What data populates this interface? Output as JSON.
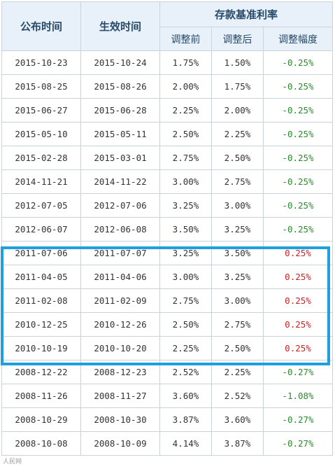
{
  "headers": {
    "announce_date": "公布时间",
    "effective_date": "生效时间",
    "rate_group": "存款基准利率",
    "before": "调整前",
    "after": "调整后",
    "change": "调整幅度"
  },
  "rows": [
    {
      "announce": "2015-10-23",
      "effective": "2015-10-24",
      "before": "1.75%",
      "after": "1.50%",
      "change": "-0.25%"
    },
    {
      "announce": "2015-08-25",
      "effective": "2015-08-26",
      "before": "2.00%",
      "after": "1.75%",
      "change": "-0.25%"
    },
    {
      "announce": "2015-06-27",
      "effective": "2015-06-28",
      "before": "2.25%",
      "after": "2.00%",
      "change": "-0.25%"
    },
    {
      "announce": "2015-05-10",
      "effective": "2015-05-11",
      "before": "2.50%",
      "after": "2.25%",
      "change": "-0.25%"
    },
    {
      "announce": "2015-02-28",
      "effective": "2015-03-01",
      "before": "2.75%",
      "after": "2.50%",
      "change": "-0.25%"
    },
    {
      "announce": "2014-11-21",
      "effective": "2014-11-22",
      "before": "3.00%",
      "after": "2.75%",
      "change": "-0.25%"
    },
    {
      "announce": "2012-07-05",
      "effective": "2012-07-06",
      "before": "3.25%",
      "after": "3.00%",
      "change": "-0.25%"
    },
    {
      "announce": "2012-06-07",
      "effective": "2012-06-08",
      "before": "3.50%",
      "after": "3.25%",
      "change": "-0.25%"
    },
    {
      "announce": "2011-07-06",
      "effective": "2011-07-07",
      "before": "3.25%",
      "after": "3.50%",
      "change": "0.25%"
    },
    {
      "announce": "2011-04-05",
      "effective": "2011-04-06",
      "before": "3.00%",
      "after": "3.25%",
      "change": "0.25%"
    },
    {
      "announce": "2011-02-08",
      "effective": "2011-02-09",
      "before": "2.75%",
      "after": "3.00%",
      "change": "0.25%"
    },
    {
      "announce": "2010-12-25",
      "effective": "2010-12-26",
      "before": "2.50%",
      "after": "2.75%",
      "change": "0.25%"
    },
    {
      "announce": "2010-10-19",
      "effective": "2010-10-20",
      "before": "2.25%",
      "after": "2.50%",
      "change": "0.25%"
    },
    {
      "announce": "2008-12-22",
      "effective": "2008-12-23",
      "before": "2.52%",
      "after": "2.25%",
      "change": "-0.27%"
    },
    {
      "announce": "2008-11-26",
      "effective": "2008-11-27",
      "before": "3.60%",
      "after": "2.52%",
      "change": "-1.08%"
    },
    {
      "announce": "2008-10-29",
      "effective": "2008-10-30",
      "before": "3.87%",
      "after": "3.60%",
      "change": "-0.27%"
    },
    {
      "announce": "2008-10-08",
      "effective": "2008-10-09",
      "before": "4.14%",
      "after": "3.87%",
      "change": "-0.27%"
    }
  ],
  "colors": {
    "negative": "#2c8a2c",
    "positive": "#d11f1f",
    "highlight_border": "#1ea0dc",
    "header_bg": "#e8f1f9"
  },
  "watermark": "人民网"
}
